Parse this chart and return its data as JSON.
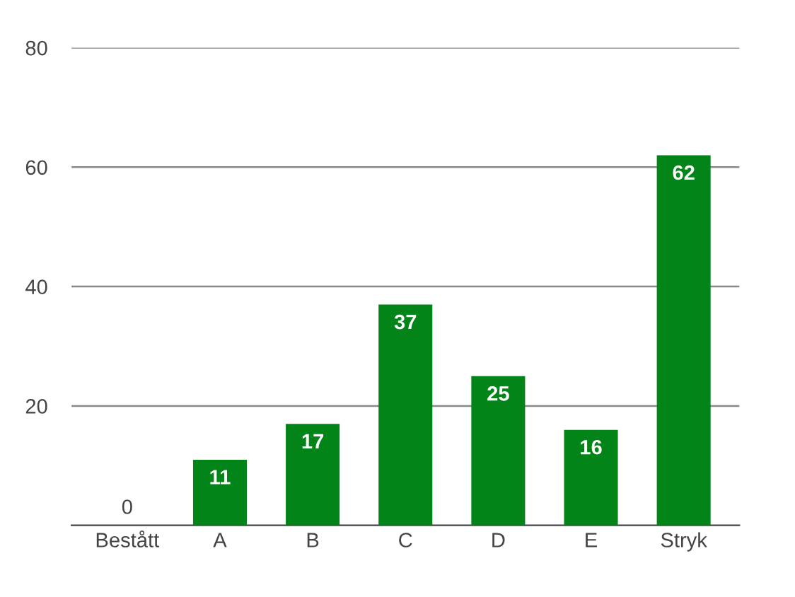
{
  "chart_data": {
    "type": "bar",
    "categories": [
      "Bestått",
      "A",
      "B",
      "C",
      "D",
      "E",
      "Stryk"
    ],
    "values": [
      0,
      11,
      17,
      37,
      25,
      16,
      62
    ],
    "color": "#038418",
    "ylim": [
      0,
      80
    ],
    "yticks": [
      20,
      40,
      60,
      80
    ],
    "grid": "y",
    "data_labels": true
  }
}
